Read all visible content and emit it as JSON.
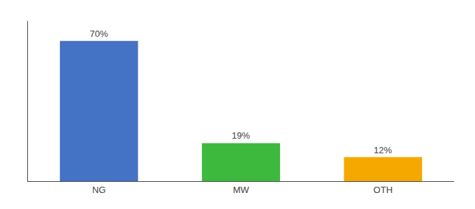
{
  "chart_data": {
    "type": "bar",
    "categories": [
      "NG",
      "MW",
      "OTH"
    ],
    "values": [
      70,
      19,
      12
    ],
    "value_labels": [
      "70%",
      "19%",
      "12%"
    ],
    "colors": [
      "#4472c4",
      "#3db93d",
      "#f5a800"
    ],
    "ylim": [
      0,
      80
    ],
    "grid": false,
    "data_labels": true,
    "tick_labels": "x"
  }
}
